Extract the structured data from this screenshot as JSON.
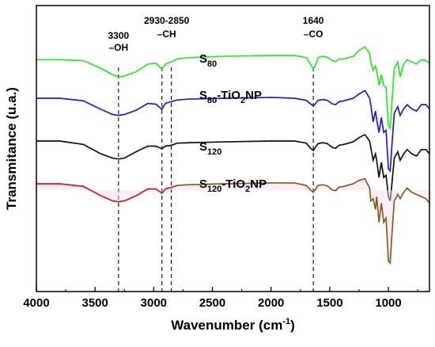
{
  "chart_data": {
    "type": "line",
    "xlabel": "Wavenumber",
    "xlabel_unit_open": " (cm",
    "xlabel_unit_sup": "-1",
    "xlabel_unit_close": ")",
    "ylabel": "Transmitance (u.a.)",
    "xlim": [
      4000,
      650
    ],
    "x_reversed": true,
    "xticks": [
      4000,
      3500,
      3000,
      2500,
      2000,
      1500,
      1000
    ],
    "y_ticks_shown": false,
    "grid": false,
    "annotations": [
      {
        "id": "oh",
        "wavenumber": 3300,
        "lines": [
          "3300",
          "–OH"
        ]
      },
      {
        "id": "ch",
        "wavenumber": [
          2930,
          2850
        ],
        "lines": [
          "2930-2850",
          "–CH"
        ]
      },
      {
        "id": "co",
        "wavenumber": 1640,
        "lines": [
          "1640",
          "–CO"
        ]
      }
    ],
    "series": [
      {
        "id": "s80",
        "label_main": "S",
        "label_sub": "80",
        "label_suffix": "",
        "label_suffix_sub": "",
        "label_tail": "",
        "color": "#22ee22",
        "offset": 3.0,
        "x": [
          4000,
          3800,
          3600,
          3450,
          3350,
          3300,
          3250,
          3150,
          3050,
          2980,
          2930,
          2900,
          2850,
          2800,
          2700,
          2400,
          2000,
          1800,
          1700,
          1660,
          1640,
          1620,
          1600,
          1560,
          1520,
          1480,
          1450,
          1420,
          1380,
          1300,
          1250,
          1200,
          1160,
          1150,
          1130,
          1110,
          1100,
          1080,
          1060,
          1040,
          1020,
          1000,
          985,
          970,
          950,
          920,
          900,
          870,
          840,
          800,
          760,
          720,
          680,
          650
        ],
        "y": [
          0.1,
          0.1,
          0.12,
          0.3,
          0.45,
          0.5,
          0.48,
          0.38,
          0.2,
          0.18,
          0.32,
          0.2,
          0.15,
          0.08,
          0.05,
          0.02,
          0.0,
          0.0,
          0.05,
          0.22,
          0.32,
          0.22,
          0.05,
          0.02,
          0.04,
          0.12,
          0.14,
          0.08,
          0.08,
          0.02,
          -0.12,
          -0.2,
          -0.05,
          0.15,
          0.35,
          0.25,
          0.35,
          0.7,
          0.45,
          0.7,
          0.75,
          1.65,
          1.7,
          1.1,
          0.3,
          0.15,
          0.5,
          0.2,
          0.1,
          0.15,
          0.2,
          0.1,
          0.12,
          0.18
        ]
      },
      {
        "id": "s80tio2",
        "label_main": "S",
        "label_sub": "80",
        "label_suffix": "-TiO",
        "label_suffix_sub": "2",
        "label_tail": "NP",
        "color": "#1a1ae6",
        "offset": 2.0,
        "x": [
          4000,
          3800,
          3600,
          3450,
          3350,
          3300,
          3250,
          3150,
          3050,
          2980,
          2930,
          2900,
          2850,
          2800,
          2700,
          2400,
          2000,
          1800,
          1700,
          1660,
          1640,
          1620,
          1600,
          1560,
          1520,
          1480,
          1450,
          1420,
          1380,
          1300,
          1250,
          1200,
          1160,
          1150,
          1130,
          1110,
          1100,
          1080,
          1060,
          1040,
          1020,
          1000,
          985,
          970,
          950,
          920,
          900,
          870,
          840,
          800,
          760,
          720,
          680,
          650
        ],
        "y": [
          0.0,
          0.0,
          0.06,
          0.26,
          0.38,
          0.4,
          0.38,
          0.28,
          0.12,
          0.14,
          0.26,
          0.12,
          0.08,
          0.04,
          0.02,
          0.0,
          -0.02,
          0.0,
          0.05,
          0.14,
          0.18,
          0.12,
          0.05,
          0.03,
          0.05,
          0.13,
          0.15,
          0.08,
          0.06,
          0.0,
          -0.1,
          -0.18,
          0.0,
          0.15,
          0.55,
          0.3,
          0.5,
          0.8,
          0.45,
          0.8,
          0.75,
          1.65,
          1.7,
          1.1,
          0.35,
          0.2,
          0.4,
          0.25,
          0.15,
          0.25,
          0.3,
          0.15,
          0.15,
          0.25
        ]
      },
      {
        "id": "s120",
        "label_main": "S",
        "label_sub": "120",
        "label_suffix": "",
        "label_suffix_sub": "",
        "label_tail": "",
        "color": "#111111",
        "offset": 1.0,
        "x": [
          4000,
          3800,
          3600,
          3450,
          3350,
          3300,
          3250,
          3150,
          3050,
          2980,
          2930,
          2900,
          2850,
          2800,
          2700,
          2400,
          2000,
          1800,
          1700,
          1660,
          1640,
          1620,
          1600,
          1560,
          1520,
          1480,
          1450,
          1420,
          1380,
          1300,
          1250,
          1200,
          1160,
          1150,
          1130,
          1110,
          1100,
          1080,
          1060,
          1040,
          1020,
          1000,
          985,
          970,
          950,
          920,
          900,
          870,
          840,
          800,
          760,
          720,
          680,
          650
        ],
        "y": [
          0.0,
          0.0,
          0.08,
          0.3,
          0.4,
          0.42,
          0.4,
          0.25,
          0.12,
          0.12,
          0.18,
          0.12,
          0.1,
          0.05,
          0.04,
          0.02,
          0.0,
          0.0,
          0.05,
          0.18,
          0.22,
          0.14,
          0.06,
          0.04,
          0.06,
          0.15,
          0.17,
          0.1,
          0.08,
          0.02,
          -0.08,
          -0.15,
          0.0,
          0.15,
          0.45,
          0.3,
          0.45,
          0.85,
          0.5,
          0.85,
          0.8,
          1.3,
          1.4,
          1.0,
          0.4,
          0.25,
          0.45,
          0.3,
          0.2,
          0.3,
          0.35,
          0.2,
          0.2,
          0.3
        ]
      },
      {
        "id": "s120tio2",
        "label_main": "S",
        "label_sub": "120",
        "label_suffix": "-TiO",
        "label_suffix_sub": "2",
        "label_tail": "NP",
        "color": "#dd1111",
        "color_secondary": "#8a5a1a",
        "offset": 0.0,
        "x": [
          4000,
          3800,
          3600,
          3450,
          3350,
          3300,
          3250,
          3150,
          3050,
          2980,
          2930,
          2900,
          2850,
          2800,
          2700,
          2400,
          2000,
          1800,
          1700,
          1660,
          1640,
          1620,
          1600,
          1560,
          1520,
          1480,
          1450,
          1420,
          1380,
          1300,
          1250,
          1200,
          1160,
          1150,
          1130,
          1110,
          1100,
          1080,
          1060,
          1040,
          1020,
          1000,
          985,
          970,
          950,
          920,
          900,
          870,
          840,
          800,
          760,
          720,
          680,
          650
        ],
        "y": [
          0.0,
          0.0,
          0.06,
          0.28,
          0.4,
          0.42,
          0.4,
          0.28,
          0.12,
          0.12,
          0.22,
          0.12,
          0.08,
          0.04,
          0.02,
          0.0,
          -0.02,
          -0.02,
          0.04,
          0.15,
          0.2,
          0.12,
          0.04,
          0.02,
          0.05,
          0.14,
          0.16,
          0.08,
          0.06,
          0.0,
          -0.08,
          -0.12,
          0.1,
          0.4,
          0.35,
          0.6,
          0.3,
          0.9,
          0.45,
          0.9,
          0.8,
          1.8,
          1.85,
          1.2,
          0.4,
          0.25,
          0.35,
          0.2,
          0.1,
          0.2,
          0.25,
          0.3,
          0.35,
          0.45
        ]
      }
    ]
  }
}
